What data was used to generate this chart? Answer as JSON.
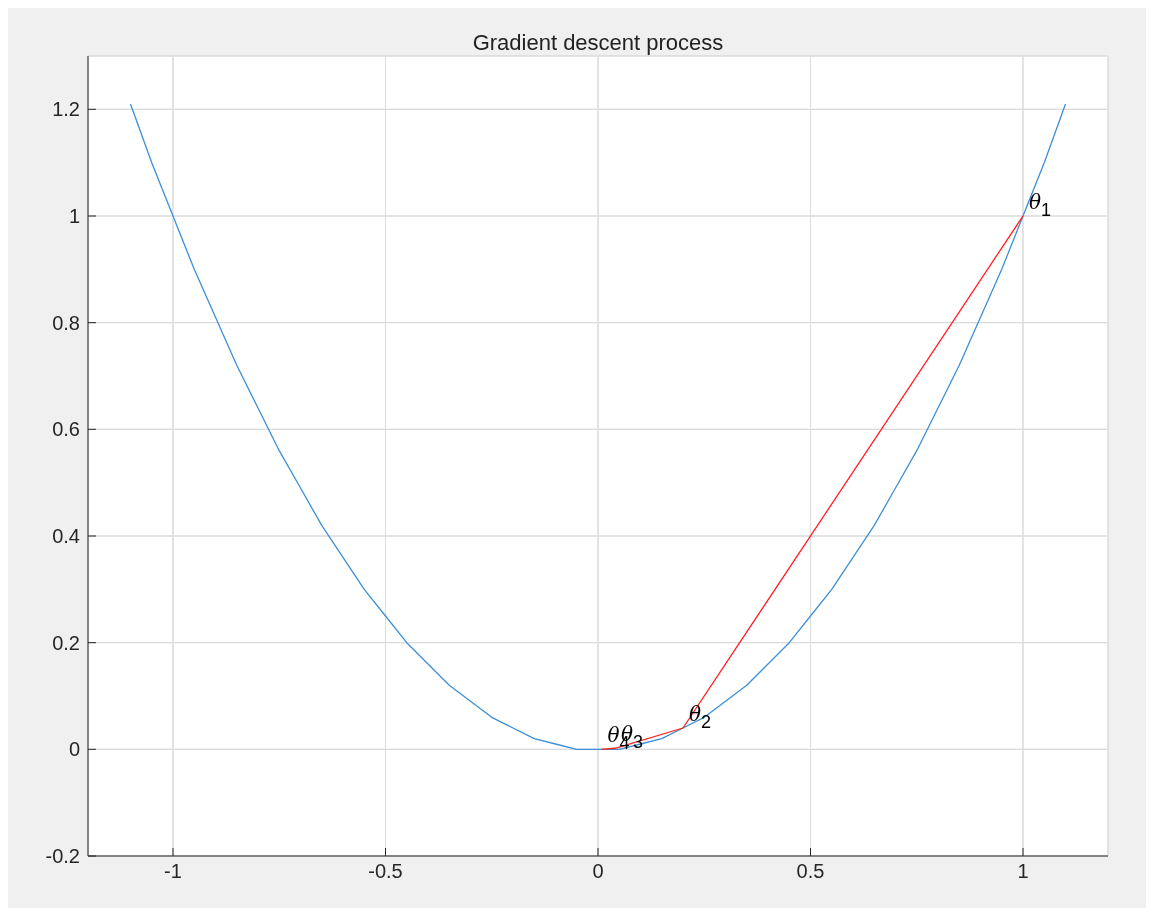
{
  "chart_data": {
    "type": "line",
    "title": "Gradient descent process",
    "xlim": [
      -1.2,
      1.2
    ],
    "ylim": [
      -0.2,
      1.3
    ],
    "xticks": [
      -1,
      -0.5,
      0,
      0.5,
      1
    ],
    "yticks": [
      -0.2,
      0,
      0.2,
      0.4,
      0.6,
      0.8,
      1,
      1.2
    ],
    "grid": true,
    "marker": "none",
    "series": [
      {
        "color": "#3d8fd6",
        "x": [
          -1.1,
          -1.05,
          -1,
          -0.95,
          -0.9,
          -0.85,
          -0.8,
          -0.75,
          -0.7,
          -0.65,
          -0.6,
          -0.55,
          -0.5,
          -0.45,
          -0.4,
          -0.35,
          -0.3,
          -0.25,
          -0.2,
          -0.15,
          -0.1,
          -0.05,
          0,
          0.05,
          0.1,
          0.15,
          0.2,
          0.25,
          0.3,
          0.35,
          0.4,
          0.45,
          0.5,
          0.55,
          0.6,
          0.65,
          0.7,
          0.75,
          0.8,
          0.85,
          0.9,
          0.95,
          1,
          1.05,
          1.1
        ],
        "values": [
          1.21,
          1.1,
          1,
          0.9,
          0.81,
          0.72,
          0.64,
          0.56,
          0.49,
          0.42,
          0.36,
          0.3,
          0.25,
          0.2,
          0.16,
          0.12,
          0.09,
          0.06,
          0.04,
          0.02,
          0.01,
          0,
          0,
          0,
          0.01,
          0.02,
          0.04,
          0.06,
          0.09,
          0.12,
          0.16,
          0.2,
          0.25,
          0.3,
          0.36,
          0.42,
          0.49,
          0.56,
          0.64,
          0.72,
          0.81,
          0.9,
          1,
          1.1,
          1.21
        ]
      },
      {
        "color": "#ff2020",
        "x": [
          1,
          0.2,
          0.04,
          0.008
        ],
        "values": [
          1,
          0.04,
          0.002,
          0
        ]
      }
    ],
    "annotations": [
      {
        "text": "θ$_{1}$",
        "x": 1,
        "y": 1
      },
      {
        "text": "θ$_{2}$",
        "x": 0.2,
        "y": 0.04
      },
      {
        "text": "θ$_{3}$",
        "x": 0.04,
        "y": 0.002
      },
      {
        "text": "θ$_{4}$",
        "x": 0.008,
        "y": 0
      }
    ]
  }
}
